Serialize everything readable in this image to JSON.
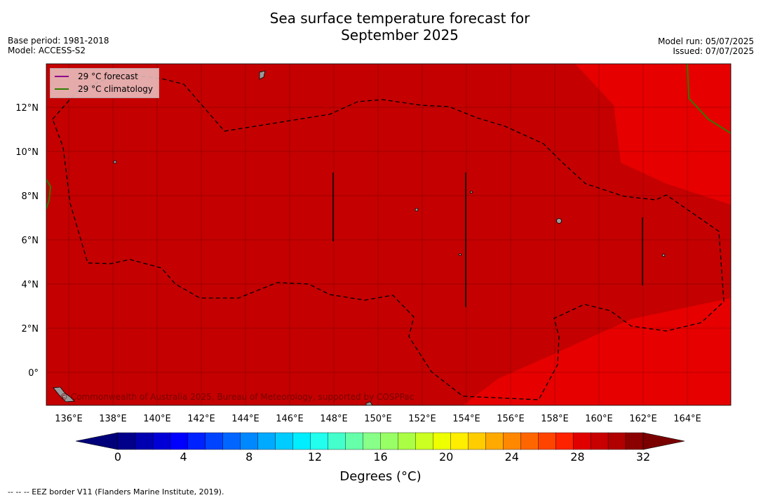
{
  "title_line1": "Sea surface temperature forecast for",
  "title_line2": "September 2025",
  "meta_left": {
    "base_period": "Base period: 1981-2018",
    "model": "Model: ACCESS-S2"
  },
  "meta_right": {
    "model_run": "Model run: 05/07/2025",
    "issued": "Issued: 07/07/2025"
  },
  "legend": {
    "forecast": {
      "label": "29 °C  forecast",
      "color": "#8b008b"
    },
    "climatology": {
      "label": "29 °C  climatology",
      "color": "#2e7d00"
    }
  },
  "x_ticks": [
    "136°E",
    "138°E",
    "140°E",
    "142°E",
    "144°E",
    "146°E",
    "148°E",
    "150°E",
    "152°E",
    "154°E",
    "156°E",
    "158°E",
    "160°E",
    "162°E",
    "164°E"
  ],
  "y_ticks": [
    "12°N",
    "10°N",
    "8°N",
    "6°N",
    "4°N",
    "2°N",
    "0°"
  ],
  "attribution": "© Commonwealth of Australia 2025, Bureau of Meteorology, supported by COSPPac",
  "colorbar": {
    "ticks": [
      "0",
      "4",
      "8",
      "12",
      "16",
      "20",
      "24",
      "28",
      "32"
    ],
    "label": "Degrees (°C)",
    "colors": [
      "#00008b",
      "#0000b0",
      "#0000d6",
      "#0000ff",
      "#0022ff",
      "#0044ff",
      "#0066ff",
      "#0088ff",
      "#00aaff",
      "#00ccff",
      "#00eeff",
      "#22ffee",
      "#44ffcc",
      "#66ffaa",
      "#88ff88",
      "#99ff66",
      "#aaff44",
      "#ccff22",
      "#eeff00",
      "#ffee00",
      "#ffcc00",
      "#ffaa00",
      "#ff8800",
      "#ff6600",
      "#ff4400",
      "#ff2200",
      "#e00000",
      "#c80000",
      "#b00000",
      "#8b0000"
    ],
    "under_color": "#00007a",
    "over_color": "#7a0000"
  },
  "footer": "--  --  -- EEZ border V11 (Flanders Marine Institute, 2019).",
  "field_colors": {
    "above_30": "#c40000",
    "29_to_30": "#cf0000",
    "28_to_29": "#e60000"
  }
}
